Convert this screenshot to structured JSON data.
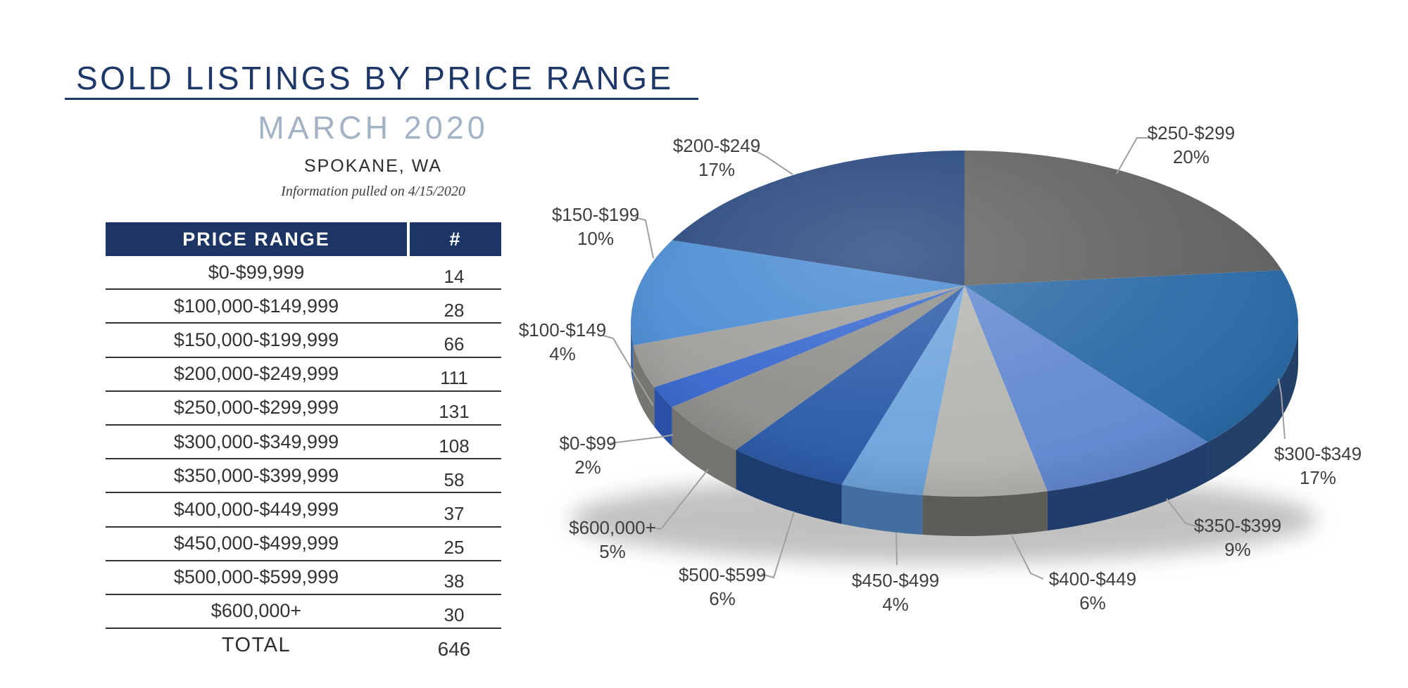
{
  "page": {
    "title": "SOLD LISTINGS BY PRICE RANGE",
    "subtitle": "MARCH 2020",
    "location": "SPOKANE, WA",
    "note": "Information pulled on 4/15/2020"
  },
  "table": {
    "headers": [
      "PRICE RANGE",
      "#"
    ],
    "rows": [
      {
        "range": "$0-$99,999",
        "count": 14
      },
      {
        "range": "$100,000-$149,999",
        "count": 28
      },
      {
        "range": "$150,000-$199,999",
        "count": 66
      },
      {
        "range": "$200,000-$249,999",
        "count": 111
      },
      {
        "range": "$250,000-$299,999",
        "count": 131
      },
      {
        "range": "$300,000-$349,999",
        "count": 108
      },
      {
        "range": "$350,000-$399,999",
        "count": 58
      },
      {
        "range": "$400,000-$449,999",
        "count": 37
      },
      {
        "range": "$450,000-$499,999",
        "count": 25
      },
      {
        "range": "$500,000-$599,999",
        "count": 38
      },
      {
        "range": "$600,000+",
        "count": 30
      }
    ],
    "total_label": "TOTAL",
    "total": 646
  },
  "chart_data": {
    "type": "pie",
    "style": "3d",
    "start_angle_deg": 0,
    "direction": "clockwise_from_top",
    "title": "",
    "legend_position": "callout-labels",
    "slices": [
      {
        "label": "$250-$299",
        "pct": 20,
        "count": 131,
        "color_top": "#616161",
        "color_side": "#4d4d4c"
      },
      {
        "label": "$300-$349",
        "pct": 17,
        "count": 108,
        "color_top": "#2b6aa6",
        "color_side": "#234068"
      },
      {
        "label": "$350-$399",
        "pct": 9,
        "count": 58,
        "color_top": "#6289d0",
        "color_side": "#203d6b"
      },
      {
        "label": "$400-$449",
        "pct": 6,
        "count": 37,
        "color_top": "#b4b4b0",
        "color_side": "#5d5c57"
      },
      {
        "label": "$450-$499",
        "pct": 4,
        "count": 25,
        "color_top": "#6ea4dc",
        "color_side": "#426f9f"
      },
      {
        "label": "$500-$599",
        "pct": 6,
        "count": 38,
        "color_top": "#2a5aa8",
        "color_side": "#1c3b6e"
      },
      {
        "label": "$600,000+",
        "pct": 5,
        "count": 30,
        "color_top": "#8d8d8a",
        "color_side": "#75736d"
      },
      {
        "label": "$0-$99",
        "pct": 2,
        "count": 14,
        "color_top": "#3566cd",
        "color_side": "#2a51a5"
      },
      {
        "label": "$100-$149",
        "pct": 4,
        "count": 28,
        "color_top": "#9c9c99",
        "color_side": "#76756f"
      },
      {
        "label": "$150-$199",
        "pct": 10,
        "count": 66,
        "color_top": "#4789d2",
        "color_side": "#3a689f"
      },
      {
        "label": "$200-$249",
        "pct": 17,
        "count": 111,
        "color_top": "#24447c",
        "color_side": "#182e52"
      }
    ]
  }
}
